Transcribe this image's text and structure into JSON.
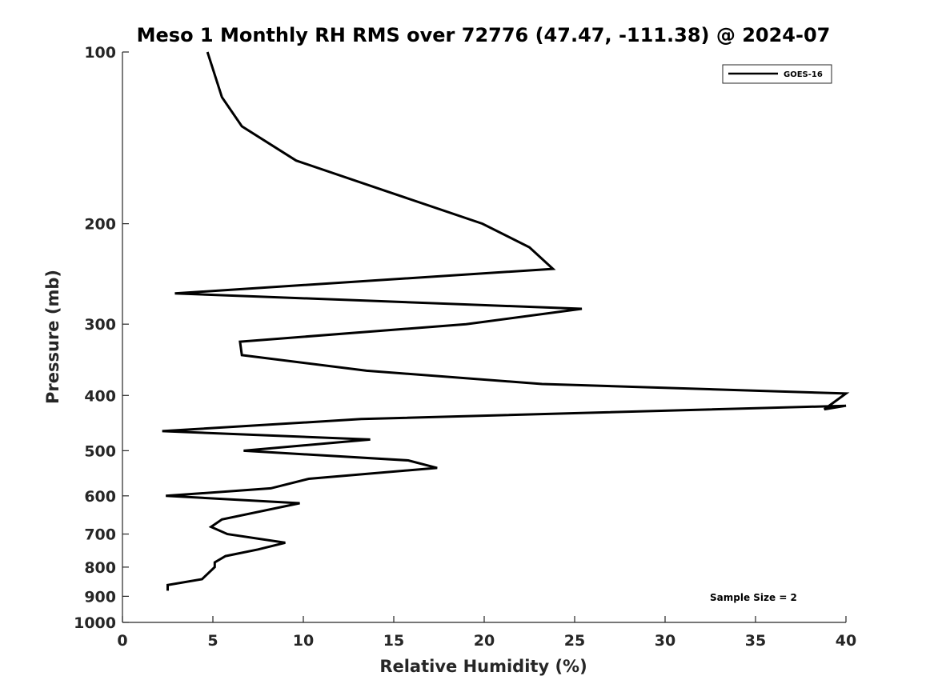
{
  "chart_data": {
    "type": "line",
    "title": "Meso 1 Monthly RH RMS over 72776 (47.47, -111.38) @ 2024-07",
    "xlabel": "Relative Humidity (%)",
    "ylabel": "Pressure (mb)",
    "xlim": [
      0,
      40
    ],
    "ylim": [
      100,
      1000
    ],
    "y_scale": "log",
    "y_reversed": true,
    "x_ticks": [
      "0",
      "5",
      "10",
      "15",
      "20",
      "25",
      "30",
      "35",
      "40"
    ],
    "y_ticks": [
      "100",
      "200",
      "300",
      "400",
      "500",
      "600",
      "700",
      "800",
      "900",
      "1000"
    ],
    "grid": false,
    "legend_position": "top-right",
    "series": [
      {
        "name": "GOES-16",
        "color": "#000000",
        "points": [
          {
            "x": 4.7,
            "y": 100
          },
          {
            "x": 5.5,
            "y": 120
          },
          {
            "x": 6.6,
            "y": 135
          },
          {
            "x": 9.6,
            "y": 155
          },
          {
            "x": 14.5,
            "y": 175
          },
          {
            "x": 19.9,
            "y": 200
          },
          {
            "x": 22.5,
            "y": 220
          },
          {
            "x": 23.8,
            "y": 240
          },
          {
            "x": 2.9,
            "y": 265
          },
          {
            "x": 25.4,
            "y": 282
          },
          {
            "x": 19.0,
            "y": 300
          },
          {
            "x": 6.5,
            "y": 322
          },
          {
            "x": 6.6,
            "y": 340
          },
          {
            "x": 13.5,
            "y": 362
          },
          {
            "x": 23.2,
            "y": 382
          },
          {
            "x": 40.0,
            "y": 397
          },
          {
            "x": 38.8,
            "y": 423
          },
          {
            "x": 40.0,
            "y": 417
          },
          {
            "x": 13.2,
            "y": 440
          },
          {
            "x": 2.2,
            "y": 462
          },
          {
            "x": 13.7,
            "y": 478
          },
          {
            "x": 6.7,
            "y": 500
          },
          {
            "x": 15.8,
            "y": 520
          },
          {
            "x": 17.4,
            "y": 536
          },
          {
            "x": 10.3,
            "y": 560
          },
          {
            "x": 8.2,
            "y": 582
          },
          {
            "x": 2.4,
            "y": 600
          },
          {
            "x": 9.8,
            "y": 618
          },
          {
            "x": 5.5,
            "y": 660
          },
          {
            "x": 4.9,
            "y": 680
          },
          {
            "x": 5.8,
            "y": 700
          },
          {
            "x": 9.0,
            "y": 725
          },
          {
            "x": 7.5,
            "y": 745
          },
          {
            "x": 5.7,
            "y": 765
          },
          {
            "x": 5.1,
            "y": 785
          },
          {
            "x": 5.1,
            "y": 800
          },
          {
            "x": 4.4,
            "y": 840
          },
          {
            "x": 2.5,
            "y": 860
          },
          {
            "x": 2.5,
            "y": 880
          }
        ]
      }
    ],
    "annotation": "Sample Size = 2"
  }
}
